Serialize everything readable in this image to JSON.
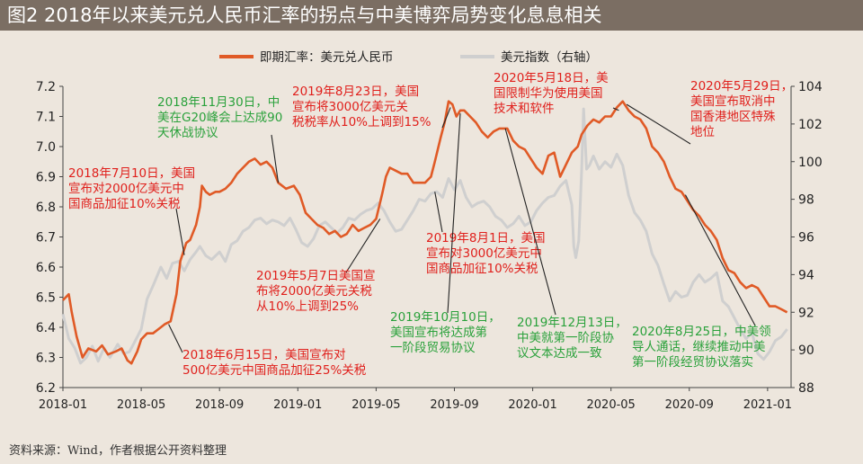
{
  "title": "图2   2018年以来美元兑人民币汇率的拐点与中美博弈局势变化息息相关",
  "source": "资料来源：Wind，作者根据公开资料整理",
  "colors": {
    "fx": "#e05a26",
    "dxy": "#cfcfcf",
    "annotation_red": "#e0201c",
    "annotation_green": "#2aa13b",
    "leader": "#222222"
  },
  "chart_data": {
    "type": "line",
    "title": "图2   2018年以来美元兑人民币汇率的拐点与中美博弈局势变化息息相关",
    "legend_position": "top",
    "x_tick_labels": [
      "2018-01",
      "2018-05",
      "2018-09",
      "2019-01",
      "2019-05",
      "2019-09",
      "2020-01",
      "2020-05",
      "2020-09",
      "2021-01"
    ],
    "x_tick_months": [
      0,
      4,
      8,
      12,
      16,
      20,
      24,
      28,
      32,
      36
    ],
    "xlim_months": [
      0,
      37.2
    ],
    "y_left": {
      "lim": [
        6.2,
        7.2
      ],
      "ticks": [
        "6.2",
        "6.3",
        "6.4",
        "6.5",
        "6.6",
        "6.7",
        "6.8",
        "6.9",
        "7.0",
        "7.1",
        "7.2"
      ]
    },
    "y_right": {
      "label": "右轴",
      "lim": [
        88,
        104
      ],
      "ticks": [
        "88",
        "90",
        "92",
        "94",
        "96",
        "98",
        "100",
        "102",
        "104"
      ]
    },
    "series": [
      {
        "name": "即期汇率：美元兑人民币",
        "axis": "left",
        "color": "#e05a26",
        "points": [
          [
            0,
            6.49
          ],
          [
            0.3,
            6.51
          ],
          [
            0.45,
            6.45
          ],
          [
            0.7,
            6.37
          ],
          [
            1.0,
            6.3
          ],
          [
            1.3,
            6.33
          ],
          [
            1.7,
            6.32
          ],
          [
            2.0,
            6.34
          ],
          [
            2.3,
            6.31
          ],
          [
            2.7,
            6.32
          ],
          [
            3.0,
            6.33
          ],
          [
            3.3,
            6.29
          ],
          [
            3.5,
            6.28
          ],
          [
            3.8,
            6.32
          ],
          [
            4.0,
            6.36
          ],
          [
            4.3,
            6.38
          ],
          [
            4.6,
            6.38
          ],
          [
            5.0,
            6.4
          ],
          [
            5.2,
            6.41
          ],
          [
            5.5,
            6.42
          ],
          [
            5.8,
            6.51
          ],
          [
            6.0,
            6.62
          ],
          [
            6.3,
            6.68
          ],
          [
            6.5,
            6.69
          ],
          [
            6.8,
            6.74
          ],
          [
            7.0,
            6.8
          ],
          [
            7.1,
            6.87
          ],
          [
            7.3,
            6.85
          ],
          [
            7.5,
            6.84
          ],
          [
            7.8,
            6.85
          ],
          [
            8.0,
            6.85
          ],
          [
            8.3,
            6.86
          ],
          [
            8.6,
            6.88
          ],
          [
            8.9,
            6.91
          ],
          [
            9.2,
            6.93
          ],
          [
            9.5,
            6.95
          ],
          [
            9.8,
            6.96
          ],
          [
            10.1,
            6.94
          ],
          [
            10.4,
            6.95
          ],
          [
            10.7,
            6.93
          ],
          [
            11.0,
            6.88
          ],
          [
            11.4,
            6.86
          ],
          [
            11.8,
            6.87
          ],
          [
            12.1,
            6.84
          ],
          [
            12.4,
            6.78
          ],
          [
            12.7,
            6.76
          ],
          [
            13.0,
            6.74
          ],
          [
            13.3,
            6.73
          ],
          [
            13.6,
            6.71
          ],
          [
            13.9,
            6.72
          ],
          [
            14.2,
            6.7
          ],
          [
            14.5,
            6.71
          ],
          [
            14.8,
            6.74
          ],
          [
            15.1,
            6.72
          ],
          [
            15.4,
            6.73
          ],
          [
            15.7,
            6.74
          ],
          [
            16.0,
            6.76
          ],
          [
            16.3,
            6.84
          ],
          [
            16.5,
            6.9
          ],
          [
            16.7,
            6.93
          ],
          [
            17.0,
            6.92
          ],
          [
            17.3,
            6.91
          ],
          [
            17.6,
            6.91
          ],
          [
            17.9,
            6.88
          ],
          [
            18.2,
            6.88
          ],
          [
            18.5,
            6.88
          ],
          [
            18.8,
            6.9
          ],
          [
            19.0,
            6.95
          ],
          [
            19.3,
            7.03
          ],
          [
            19.5,
            7.08
          ],
          [
            19.7,
            7.15
          ],
          [
            19.9,
            7.14
          ],
          [
            20.1,
            7.1
          ],
          [
            20.3,
            7.12
          ],
          [
            20.5,
            7.12
          ],
          [
            20.8,
            7.1
          ],
          [
            21.1,
            7.08
          ],
          [
            21.4,
            7.05
          ],
          [
            21.7,
            7.03
          ],
          [
            22.0,
            7.05
          ],
          [
            22.3,
            7.06
          ],
          [
            22.7,
            7.06
          ],
          [
            23.0,
            7.02
          ],
          [
            23.3,
            7.0
          ],
          [
            23.6,
            6.99
          ],
          [
            23.9,
            6.96
          ],
          [
            24.2,
            6.93
          ],
          [
            24.5,
            6.91
          ],
          [
            24.8,
            6.97
          ],
          [
            25.1,
            6.98
          ],
          [
            25.4,
            6.9
          ],
          [
            25.7,
            6.94
          ],
          [
            26.0,
            6.98
          ],
          [
            26.3,
            7.0
          ],
          [
            26.5,
            7.04
          ],
          [
            26.8,
            7.07
          ],
          [
            27.1,
            7.09
          ],
          [
            27.4,
            7.08
          ],
          [
            27.7,
            7.1
          ],
          [
            28.0,
            7.1
          ],
          [
            28.3,
            7.13
          ],
          [
            28.6,
            7.15
          ],
          [
            28.9,
            7.12
          ],
          [
            29.2,
            7.1
          ],
          [
            29.5,
            7.09
          ],
          [
            29.8,
            7.06
          ],
          [
            30.1,
            7.0
          ],
          [
            30.4,
            6.98
          ],
          [
            30.7,
            6.95
          ],
          [
            31.0,
            6.9
          ],
          [
            31.3,
            6.86
          ],
          [
            31.6,
            6.85
          ],
          [
            31.9,
            6.82
          ],
          [
            32.2,
            6.79
          ],
          [
            32.5,
            6.77
          ],
          [
            32.8,
            6.74
          ],
          [
            33.1,
            6.72
          ],
          [
            33.4,
            6.69
          ],
          [
            33.7,
            6.63
          ],
          [
            34.0,
            6.59
          ],
          [
            34.3,
            6.58
          ],
          [
            34.6,
            6.55
          ],
          [
            34.9,
            6.53
          ],
          [
            35.2,
            6.54
          ],
          [
            35.5,
            6.53
          ],
          [
            35.8,
            6.5
          ],
          [
            36.1,
            6.47
          ],
          [
            36.4,
            6.47
          ],
          [
            36.7,
            6.46
          ],
          [
            37.0,
            6.45
          ]
        ]
      },
      {
        "name": "美元指数（右轴）",
        "axis": "right",
        "color": "#cfcfcf",
        "points": [
          [
            0,
            91.9
          ],
          [
            0.3,
            90.6
          ],
          [
            0.6,
            90.1
          ],
          [
            0.9,
            89.3
          ],
          [
            1.2,
            89.6
          ],
          [
            1.5,
            90.2
          ],
          [
            1.8,
            89.4
          ],
          [
            2.1,
            90.1
          ],
          [
            2.4,
            89.6
          ],
          [
            2.8,
            90.3
          ],
          [
            3.1,
            89.8
          ],
          [
            3.4,
            89.9
          ],
          [
            3.7,
            90.5
          ],
          [
            4.0,
            91.1
          ],
          [
            4.3,
            92.7
          ],
          [
            4.6,
            93.4
          ],
          [
            5.0,
            94.4
          ],
          [
            5.3,
            93.8
          ],
          [
            5.6,
            94.6
          ],
          [
            5.9,
            94.7
          ],
          [
            6.2,
            94.2
          ],
          [
            6.5,
            94.8
          ],
          [
            6.8,
            95.2
          ],
          [
            7.0,
            95.5
          ],
          [
            7.3,
            95.0
          ],
          [
            7.6,
            94.8
          ],
          [
            8.0,
            95.2
          ],
          [
            8.3,
            94.7
          ],
          [
            8.6,
            95.6
          ],
          [
            8.9,
            95.8
          ],
          [
            9.2,
            96.3
          ],
          [
            9.5,
            96.5
          ],
          [
            9.8,
            96.9
          ],
          [
            10.1,
            97.0
          ],
          [
            10.4,
            96.7
          ],
          [
            10.7,
            96.9
          ],
          [
            11.0,
            96.8
          ],
          [
            11.3,
            96.6
          ],
          [
            11.6,
            97.0
          ],
          [
            11.9,
            96.4
          ],
          [
            12.2,
            95.7
          ],
          [
            12.5,
            95.5
          ],
          [
            12.8,
            95.9
          ],
          [
            13.1,
            96.6
          ],
          [
            13.4,
            96.8
          ],
          [
            13.7,
            96.5
          ],
          [
            14.0,
            96.2
          ],
          [
            14.3,
            96.5
          ],
          [
            14.6,
            97.0
          ],
          [
            14.9,
            96.9
          ],
          [
            15.2,
            97.2
          ],
          [
            15.5,
            97.4
          ],
          [
            15.8,
            97.5
          ],
          [
            16.1,
            97.8
          ],
          [
            16.4,
            97.4
          ],
          [
            16.7,
            96.8
          ],
          [
            17.0,
            96.3
          ],
          [
            17.3,
            96.4
          ],
          [
            17.6,
            96.9
          ],
          [
            17.9,
            97.4
          ],
          [
            18.2,
            98.0
          ],
          [
            18.5,
            97.9
          ],
          [
            18.8,
            98.3
          ],
          [
            19.1,
            98.4
          ],
          [
            19.4,
            98.1
          ],
          [
            19.7,
            99.1
          ],
          [
            20.0,
            98.5
          ],
          [
            20.3,
            99.0
          ],
          [
            20.6,
            98.1
          ],
          [
            20.9,
            97.6
          ],
          [
            21.2,
            97.8
          ],
          [
            21.5,
            97.9
          ],
          [
            21.8,
            97.6
          ],
          [
            22.1,
            97.1
          ],
          [
            22.4,
            96.9
          ],
          [
            22.7,
            96.5
          ],
          [
            23.0,
            96.7
          ],
          [
            23.3,
            97.1
          ],
          [
            23.6,
            96.6
          ],
          [
            23.9,
            96.8
          ],
          [
            24.2,
            97.4
          ],
          [
            24.5,
            97.8
          ],
          [
            24.8,
            98.1
          ],
          [
            25.1,
            98.2
          ],
          [
            25.4,
            98.7
          ],
          [
            25.7,
            99.0
          ],
          [
            26.0,
            97.7
          ],
          [
            26.1,
            95.5
          ],
          [
            26.2,
            94.9
          ],
          [
            26.35,
            95.8
          ],
          [
            26.5,
            99.5
          ],
          [
            26.6,
            102.8
          ],
          [
            26.75,
            99.6
          ],
          [
            26.9,
            99.8
          ],
          [
            27.1,
            100.3
          ],
          [
            27.4,
            99.6
          ],
          [
            27.7,
            100.0
          ],
          [
            28.0,
            99.7
          ],
          [
            28.3,
            100.4
          ],
          [
            28.6,
            99.8
          ],
          [
            28.9,
            98.2
          ],
          [
            29.2,
            97.3
          ],
          [
            29.5,
            96.9
          ],
          [
            29.8,
            96.3
          ],
          [
            30.1,
            95.1
          ],
          [
            30.4,
            94.5
          ],
          [
            30.7,
            93.5
          ],
          [
            31.0,
            92.6
          ],
          [
            31.3,
            93.1
          ],
          [
            31.6,
            92.8
          ],
          [
            31.9,
            92.9
          ],
          [
            32.2,
            93.6
          ],
          [
            32.5,
            94.0
          ],
          [
            32.8,
            93.6
          ],
          [
            33.1,
            93.8
          ],
          [
            33.4,
            94.1
          ],
          [
            33.7,
            92.6
          ],
          [
            34.0,
            92.3
          ],
          [
            34.3,
            91.7
          ],
          [
            34.6,
            91.1
          ],
          [
            34.9,
            90.6
          ],
          [
            35.2,
            90.9
          ],
          [
            35.5,
            89.8
          ],
          [
            35.8,
            89.5
          ],
          [
            36.1,
            89.9
          ],
          [
            36.4,
            90.5
          ],
          [
            36.7,
            90.7
          ],
          [
            37.0,
            91.1
          ]
        ]
      }
    ],
    "annotations": [
      {
        "text": [
          "2018年7月10日，美国",
          "宣布对2000亿美元中",
          "国商品加征10%关税"
        ],
        "color": "red",
        "anchor": [
          6.2,
          6.64
        ]
      },
      {
        "text": [
          "2018年6月15日，美国宣布对",
          "500亿美元中国商品加征25%关税"
        ],
        "color": "red",
        "anchor": [
          5.4,
          6.41
        ]
      },
      {
        "text": [
          "2018年11月30日，中",
          "美在G20峰会上达成90",
          "天休战协议"
        ],
        "color": "green",
        "anchor": [
          11.0,
          6.88
        ]
      },
      {
        "text": [
          "2019年5月7日美国宣",
          "布将2000亿美元关税",
          "从10%上调到25%"
        ],
        "color": "red",
        "anchor": [
          16.2,
          6.76
        ]
      },
      {
        "text": [
          "2019年8月23日，美国",
          "宣布将3000亿美元关",
          "税税率从10%上调到15%"
        ],
        "color": "red",
        "anchor": [
          19.8,
          7.13
        ]
      },
      {
        "text": [
          "2019年8月1日，美国",
          "宣布对3000亿美元中",
          "国商品加征10%关税"
        ],
        "color": "red",
        "anchor": [
          19.0,
          6.85
        ]
      },
      {
        "text": [
          "2019年10月10日，",
          "美国宣布将达成第",
          "一阶段贸易协议"
        ],
        "color": "green",
        "anchor": [
          20.3,
          7.11
        ]
      },
      {
        "text": [
          "2019年12月13日，",
          "中美就第一阶段协",
          "议文本达成一致"
        ],
        "color": "green",
        "anchor": [
          22.6,
          7.06
        ]
      },
      {
        "text": [
          "2020年5月18日，美",
          "国限制华为使用美国",
          "技术和软件"
        ],
        "color": "red",
        "anchor": [
          28.4,
          7.12
        ]
      },
      {
        "text": [
          "2020年5月29日，",
          "美国宣布取消中",
          "国香港地区特殊",
          "地位"
        ],
        "color": "red",
        "anchor": [
          28.8,
          7.14
        ]
      },
      {
        "text": [
          "2020年8月25日，中美领",
          "导人通话，继续推动中美",
          "第一阶段经贸协议落实"
        ],
        "color": "green",
        "anchor": [
          31.8,
          6.84
        ]
      }
    ]
  }
}
